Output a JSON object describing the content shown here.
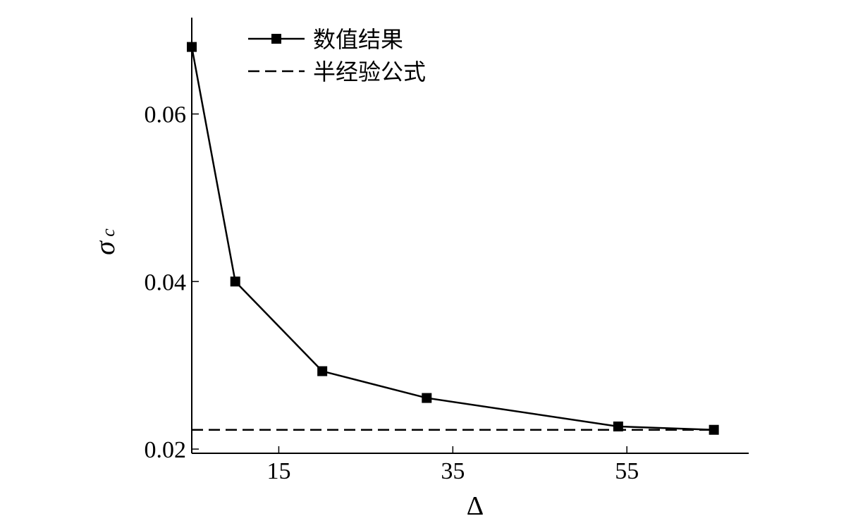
{
  "chart_data": {
    "type": "line",
    "x_label": "Δ",
    "y_label": "σ",
    "y_label_subscript": "c",
    "xlim": [
      5,
      69
    ],
    "ylim": [
      0.0195,
      0.0715
    ],
    "x_ticks": [
      15,
      35,
      55
    ],
    "x_tick_labels": [
      "15",
      "35",
      "55"
    ],
    "y_ticks": [
      0.02,
      0.04,
      0.06
    ],
    "y_tick_labels": [
      "0.02",
      "0.04",
      "0.06"
    ],
    "legend_position": "top-left",
    "series": [
      {
        "name": "数值结果",
        "style": "solid-with-square-markers",
        "color": "#000000",
        "x": [
          5,
          10,
          20,
          32,
          54,
          65
        ],
        "y": [
          0.068,
          0.04,
          0.0293,
          0.0261,
          0.0227,
          0.0223
        ]
      },
      {
        "name": "半经验公式",
        "style": "dashed",
        "color": "#000000",
        "y_constant": 0.0223
      }
    ]
  }
}
